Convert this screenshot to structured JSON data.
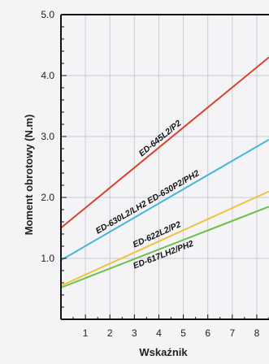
{
  "chart_data": {
    "type": "line",
    "title": "",
    "xlabel": "Wskaźnik",
    "ylabel": "Moment obrotowy (N.m)",
    "xlim": [
      0,
      8.5
    ],
    "ylim": [
      0,
      5.0
    ],
    "x_ticks": [
      "1",
      "2",
      "3",
      "4",
      "5",
      "6",
      "7",
      "8"
    ],
    "y_ticks": [
      "1.0",
      "2.0",
      "3.0",
      "4.0",
      "5.0"
    ],
    "grid": true,
    "legend": "none",
    "series": [
      {
        "name": "ED-645L2/P2",
        "color": "#d8432a",
        "x": [
          0,
          8.5
        ],
        "y": [
          1.5,
          4.3
        ]
      },
      {
        "name": "ED-630L2/LH2 ED-630P2/PH2",
        "color": "#46b4df",
        "x": [
          0,
          8.5
        ],
        "y": [
          0.97,
          2.95
        ]
      },
      {
        "name": "ED-622L2/P2",
        "color": "#efc240",
        "x": [
          0,
          8.5
        ],
        "y": [
          0.55,
          2.1
        ]
      },
      {
        "name": "ED-617LH2/PH2",
        "color": "#6cc04a",
        "x": [
          0,
          8.5
        ],
        "y": [
          0.52,
          1.85
        ]
      }
    ]
  }
}
